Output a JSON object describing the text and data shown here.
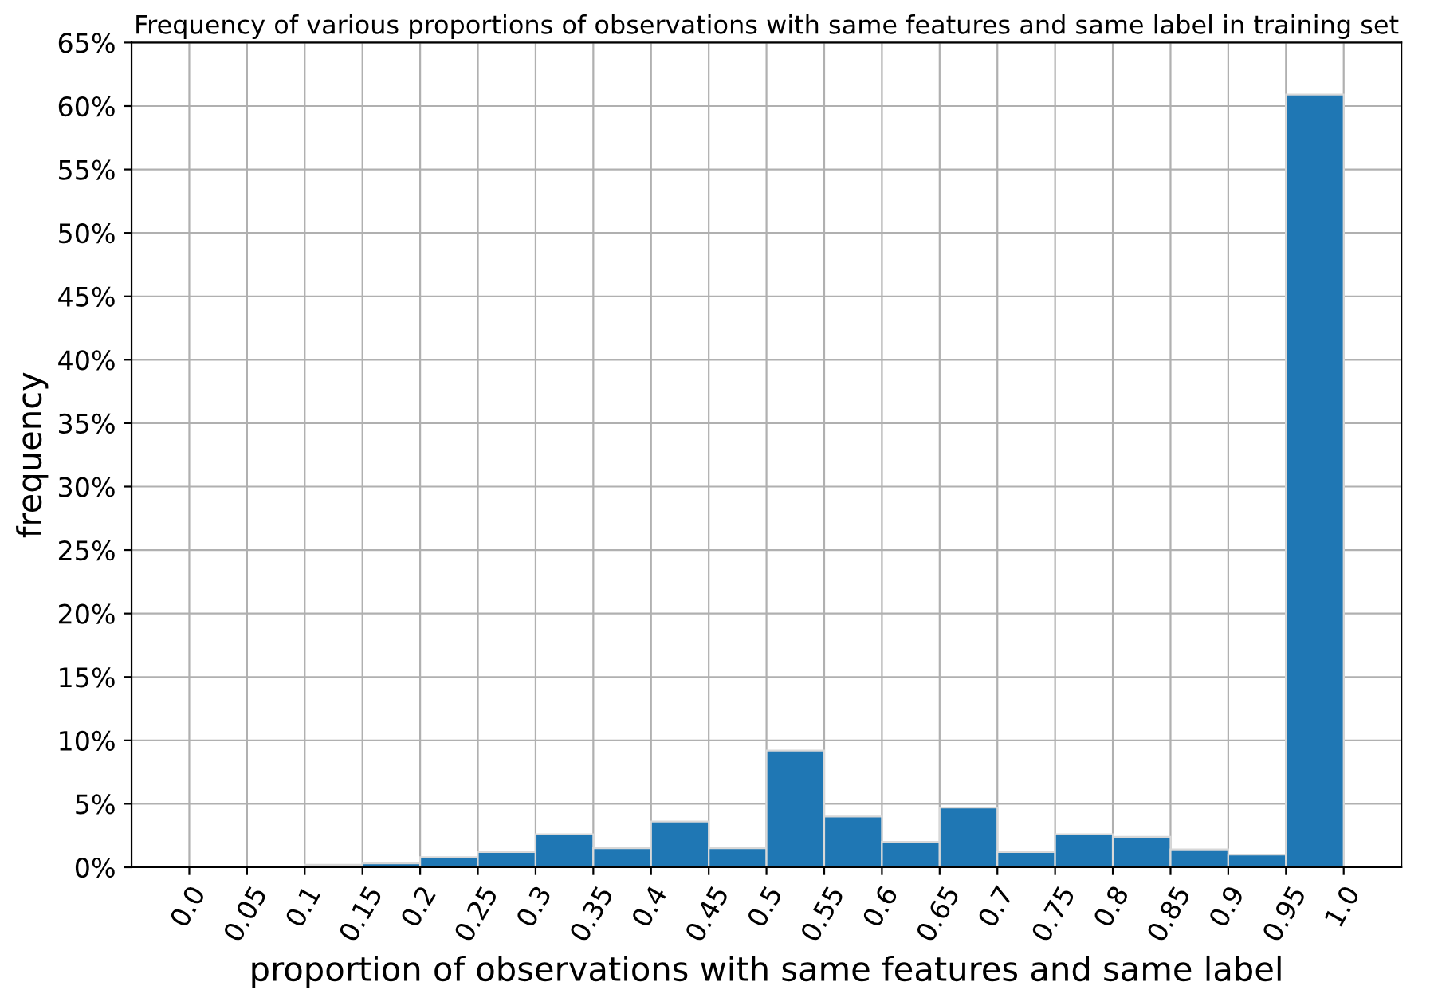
{
  "chart_data": {
    "type": "histogram",
    "title": "Frequency of various proportions of observations with same features and same label in training set",
    "xlabel": "proportion of observations with same features and same label",
    "ylabel": "frequency",
    "bins": [
      0.0,
      0.05,
      0.1,
      0.15,
      0.2,
      0.25,
      0.3,
      0.35,
      0.4,
      0.45,
      0.5,
      0.55,
      0.6,
      0.65,
      0.7,
      0.75,
      0.8,
      0.85,
      0.9,
      0.95,
      1.0
    ],
    "values": [
      0,
      0,
      0.2,
      0.3,
      0.8,
      1.2,
      2.6,
      1.5,
      3.6,
      1.5,
      9.2,
      4.0,
      2.0,
      4.7,
      1.2,
      2.6,
      2.4,
      1.4,
      1.0,
      60.9
    ],
    "color": "#1f77b4",
    "xlim": [
      -0.05,
      1.05
    ],
    "xticks": [
      {
        "value": 0.0,
        "label": "0.0"
      },
      0.05,
      0.1,
      0.15,
      0.2,
      0.25,
      0.3,
      0.35,
      0.4,
      0.45,
      0.5,
      0.55,
      0.6,
      0.65,
      0.7,
      0.75,
      0.8,
      0.85,
      0.9,
      0.95,
      {
        "value": 1.0,
        "label": "1.0"
      }
    ],
    "ylim": [
      0,
      65
    ],
    "yticks": [
      {
        "value": 0,
        "label": "0%"
      },
      {
        "value": 5,
        "label": "5%"
      },
      {
        "value": 10,
        "label": "10%"
      },
      {
        "value": 15,
        "label": "15%"
      },
      {
        "value": 20,
        "label": "20%"
      },
      {
        "value": 25,
        "label": "25%"
      },
      {
        "value": 30,
        "label": "30%"
      },
      {
        "value": 35,
        "label": "35%"
      },
      {
        "value": 40,
        "label": "40%"
      },
      {
        "value": 45,
        "label": "45%"
      },
      {
        "value": 50,
        "label": "50%"
      },
      {
        "value": 55,
        "label": "55%"
      },
      {
        "value": 60,
        "label": "60%"
      },
      {
        "value": 65,
        "label": "65%"
      }
    ],
    "grid": true
  }
}
